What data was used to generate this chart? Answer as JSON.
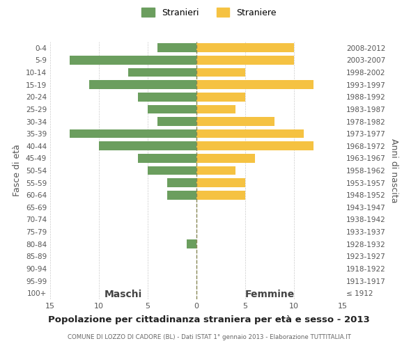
{
  "age_groups_bottom_to_top": [
    "0-4",
    "5-9",
    "10-14",
    "15-19",
    "20-24",
    "25-29",
    "30-34",
    "35-39",
    "40-44",
    "45-49",
    "50-54",
    "55-59",
    "60-64",
    "65-69",
    "70-74",
    "75-79",
    "80-84",
    "85-89",
    "90-94",
    "95-99",
    "100+"
  ],
  "birth_years_bottom_to_top": [
    "2008-2012",
    "2003-2007",
    "1998-2002",
    "1993-1997",
    "1988-1992",
    "1983-1987",
    "1978-1982",
    "1973-1977",
    "1968-1972",
    "1963-1967",
    "1958-1962",
    "1953-1957",
    "1948-1952",
    "1943-1947",
    "1938-1942",
    "1933-1937",
    "1928-1932",
    "1923-1927",
    "1918-1922",
    "1913-1917",
    "≤ 1912"
  ],
  "maschi_bottom_to_top": [
    4,
    13,
    7,
    11,
    6,
    5,
    4,
    13,
    10,
    6,
    5,
    3,
    3,
    0,
    0,
    0,
    1,
    0,
    0,
    0,
    0
  ],
  "femmine_bottom_to_top": [
    10,
    10,
    5,
    12,
    5,
    4,
    8,
    11,
    12,
    6,
    4,
    5,
    5,
    0,
    0,
    0,
    0,
    0,
    0,
    0,
    0
  ],
  "male_color": "#6b9e5e",
  "female_color": "#f5c242",
  "title": "Popolazione per cittadinanza straniera per età e sesso - 2013",
  "subtitle": "COMUNE DI LOZZO DI CADORE (BL) - Dati ISTAT 1° gennaio 2013 - Elaborazione TUTTITALIA.IT",
  "ylabel_left": "Fasce di età",
  "ylabel_right": "Anni di nascita",
  "legend_maschi": "Stranieri",
  "legend_femmine": "Straniere",
  "xlim": 15,
  "background_color": "#ffffff",
  "grid_color": "#cccccc",
  "bar_height": 0.72
}
